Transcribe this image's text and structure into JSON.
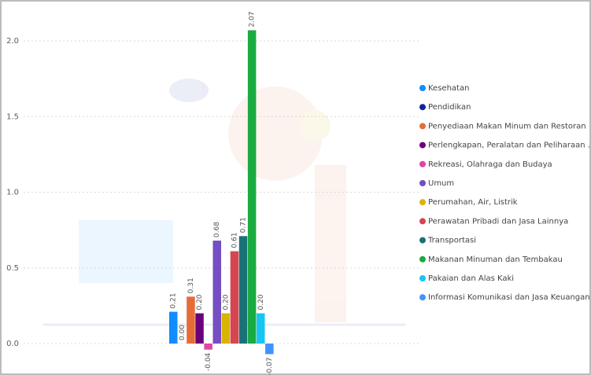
{
  "chart_data": {
    "type": "bar",
    "categories": [
      null
    ],
    "series": [
      {
        "name": "Kesehatan",
        "color": "#118DFF",
        "values": [
          0.21
        ],
        "value_labels": [
          "0.21"
        ]
      },
      {
        "name": "Pendidikan",
        "color": "#12239E",
        "values": [
          0.0
        ],
        "value_labels": [
          "0.00"
        ]
      },
      {
        "name": "Penyediaan Makan Minum dan Restoran",
        "color": "#E66C37",
        "values": [
          0.31
        ],
        "value_labels": [
          "0.31"
        ]
      },
      {
        "name": "Perlengkapan, Peralatan dan Peliharaan ...",
        "color": "#6B007B",
        "values": [
          0.2
        ],
        "value_labels": [
          "0.20"
        ]
      },
      {
        "name": "Rekreasi, Olahraga dan Budaya",
        "color": "#E044A7",
        "values": [
          -0.04
        ],
        "value_labels": [
          "-0.04"
        ]
      },
      {
        "name": "Umum",
        "color": "#744EC2",
        "values": [
          0.68
        ],
        "value_labels": [
          "0.68"
        ]
      },
      {
        "name": "Perumahan, Air, Listrik",
        "color": "#D9B300",
        "values": [
          0.2
        ],
        "value_labels": [
          "0.20"
        ]
      },
      {
        "name": "Perawatan Pribadi dan Jasa Lainnya",
        "color": "#D64550",
        "values": [
          0.61
        ],
        "value_labels": [
          "0.61"
        ]
      },
      {
        "name": "Transportasi",
        "color": "#197278",
        "values": [
          0.71
        ],
        "value_labels": [
          "0.71"
        ]
      },
      {
        "name": "Makanan Minuman dan Tembakau",
        "color": "#1AAB40",
        "values": [
          2.07
        ],
        "value_labels": [
          "2.07"
        ]
      },
      {
        "name": "Pakaian dan Alas Kaki",
        "color": "#15C6F4",
        "values": [
          0.2
        ],
        "value_labels": [
          "0.20"
        ]
      },
      {
        "name": "Informasi Komunikasi dan Jasa Keuangan",
        "color": "#4092FF",
        "values": [
          -0.07
        ],
        "value_labels": [
          "-0.07"
        ]
      }
    ],
    "ylim": [
      -0.1,
      2.2
    ],
    "yticks": [
      {
        "value": 0,
        "label": "0.0"
      },
      {
        "value": 0.5,
        "label": "0.5"
      },
      {
        "value": 1,
        "label": "1.0"
      },
      {
        "value": 1.5,
        "label": "1.5"
      },
      {
        "value": 2,
        "label": "2.0"
      }
    ],
    "grid": true,
    "legend": "right"
  }
}
